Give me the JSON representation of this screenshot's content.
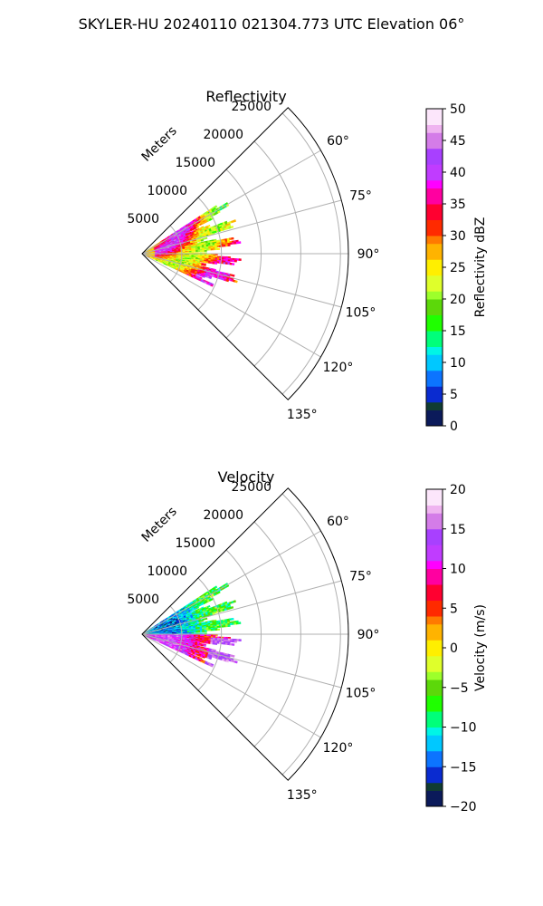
{
  "figure": {
    "title": "SKYLER-HU  20240110  021304.773 UTC Elevation 06°"
  },
  "chart_data": [
    {
      "type": "heatmap",
      "projection": "polar-sector",
      "title": "Reflectivity",
      "radial_axis_label": "Meters",
      "radial_ticks": [
        5000,
        10000,
        15000,
        20000,
        25000
      ],
      "radial_tick_labels": [
        "5000",
        "10000",
        "15000",
        "20000",
        "25000"
      ],
      "angle_range_deg": [
        45,
        135
      ],
      "angle_ticks_deg": [
        60,
        75,
        90,
        105,
        120,
        135
      ],
      "angle_tick_labels": [
        "60°",
        "75°",
        "90°",
        "105°",
        "120°",
        "135°"
      ],
      "grid": true,
      "data_coverage": {
        "azimuth_deg": [
          57,
          115
        ],
        "range_m": [
          0,
          12500
        ]
      },
      "colorbar": {
        "label": "Reflectivity dBZ",
        "range": [
          0,
          50
        ],
        "ticks": [
          0,
          5,
          10,
          15,
          20,
          25,
          30,
          35,
          40,
          45,
          50
        ],
        "tick_labels": [
          "0",
          "5",
          "10",
          "15",
          "20",
          "25",
          "30",
          "35",
          "40",
          "45",
          "50"
        ]
      }
    },
    {
      "type": "heatmap",
      "projection": "polar-sector",
      "title": "Velocity",
      "radial_axis_label": "Meters",
      "radial_ticks": [
        5000,
        10000,
        15000,
        20000,
        25000
      ],
      "radial_tick_labels": [
        "5000",
        "10000",
        "15000",
        "20000",
        "25000"
      ],
      "angle_range_deg": [
        45,
        135
      ],
      "angle_ticks_deg": [
        60,
        75,
        90,
        105,
        120,
        135
      ],
      "angle_tick_labels": [
        "60°",
        "75°",
        "90°",
        "105°",
        "120°",
        "135°"
      ],
      "grid": true,
      "data_coverage": {
        "azimuth_deg": [
          57,
          115
        ],
        "range_m": [
          0,
          12500
        ]
      },
      "colorbar": {
        "label": "Velocity (m/s)",
        "range": [
          -20,
          20
        ],
        "ticks": [
          -20,
          -15,
          -10,
          -5,
          0,
          5,
          10,
          15,
          20
        ],
        "tick_labels": [
          "−20",
          "−15",
          "−10",
          "−5",
          "0",
          "5",
          "10",
          "15",
          "20"
        ]
      }
    }
  ],
  "colors": {
    "grid": "#b0b0b0",
    "axis": "#000000",
    "colormap": [
      "#0b1a5a",
      "#103c33",
      "#0a2bd0",
      "#0c74ff",
      "#00c8ff",
      "#00f5e6",
      "#00ff7a",
      "#1fff00",
      "#5cd80a",
      "#9dff2b",
      "#dfff2b",
      "#ffef00",
      "#ffb300",
      "#ff7a00",
      "#ff2a00",
      "#ff0030",
      "#ff00a0",
      "#ff00ff",
      "#c03cff",
      "#a840ff",
      "#d47ce8",
      "#efb4f0",
      "#fce6fb"
    ]
  }
}
